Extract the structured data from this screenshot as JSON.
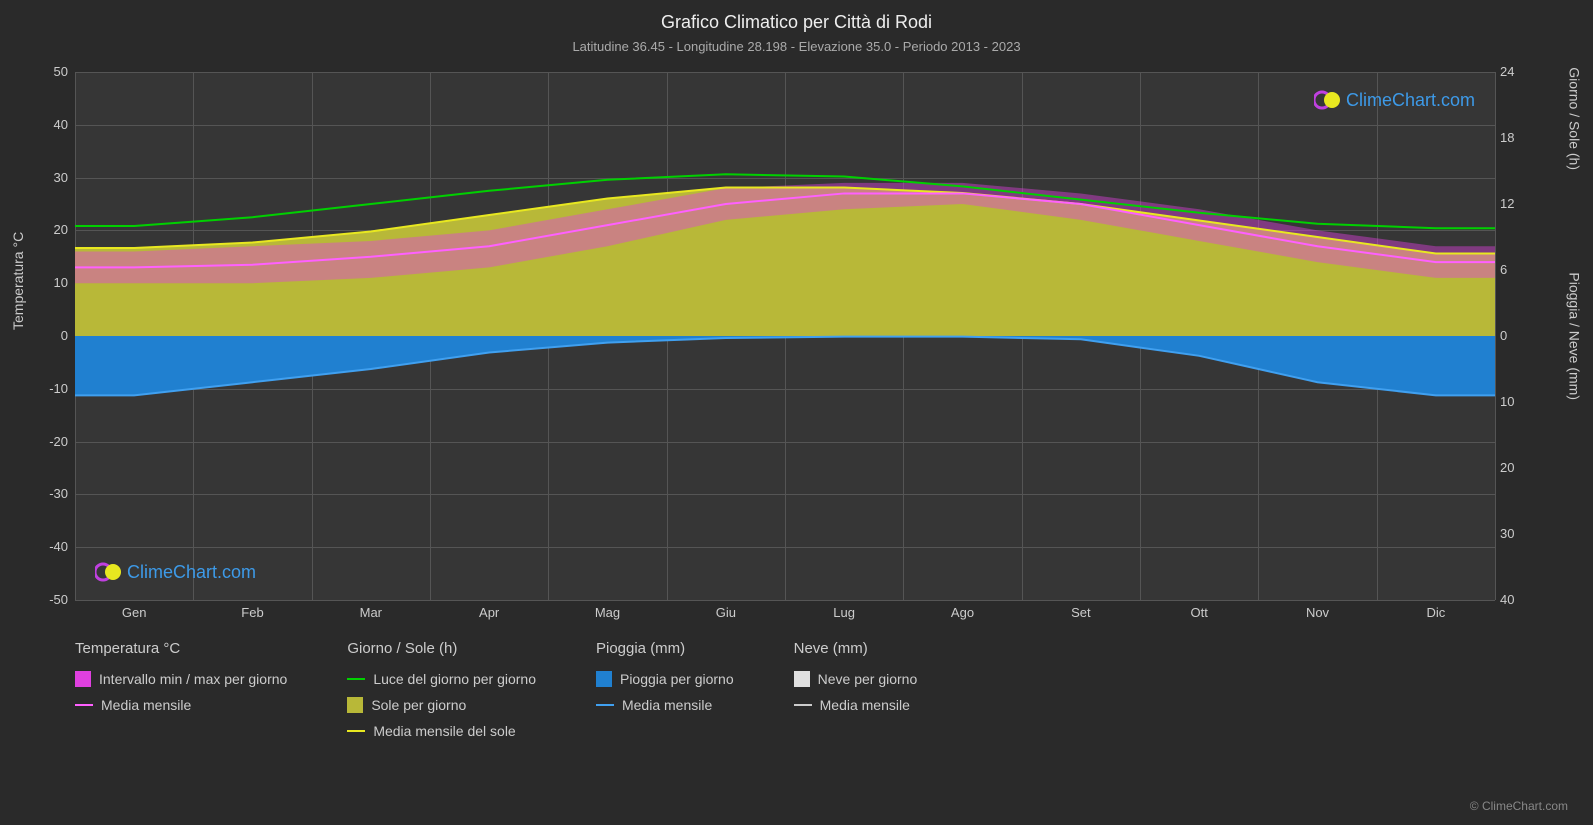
{
  "title": "Grafico Climatico per Città di Rodi",
  "subtitle": "Latitudine 36.45 - Longitudine 28.198 - Elevazione 35.0 - Periodo 2013 - 2023",
  "watermark_text": "ClimeChart.com",
  "copyright": "© ClimeChart.com",
  "background_color": "#2a2a2a",
  "plot_background": "#363636",
  "grid_color": "#555555",
  "text_color": "#cccccc",
  "title_fontsize": 18,
  "subtitle_fontsize": 13,
  "tick_fontsize": 13,
  "legend_fontsize": 14,
  "axis_left": {
    "label": "Temperatura °C",
    "min": -50,
    "max": 50,
    "ticks": [
      -50,
      -40,
      -30,
      -20,
      -10,
      0,
      10,
      20,
      30,
      40,
      50
    ]
  },
  "axis_right_top": {
    "label": "Giorno / Sole (h)",
    "min": 0,
    "max": 24,
    "ticks": [
      0,
      6,
      12,
      18,
      24
    ]
  },
  "axis_right_bottom": {
    "label": "Pioggia / Neve (mm)",
    "min": 0,
    "max": 40,
    "ticks": [
      0,
      10,
      20,
      30,
      40
    ]
  },
  "axis_x": {
    "labels": [
      "Gen",
      "Feb",
      "Mar",
      "Apr",
      "Mag",
      "Giu",
      "Lug",
      "Ago",
      "Set",
      "Ott",
      "Nov",
      "Dic"
    ]
  },
  "colors": {
    "temp_range": "#e040e0",
    "temp_mean": "#ff60ff",
    "daylight": "#00d000",
    "sun_fill": "#b8b838",
    "sun_line": "#e8e820",
    "rain_fill": "#2080d0",
    "rain_line": "#40a0f0",
    "snow_fill": "#e0e0e0",
    "snow_line": "#cccccc",
    "watermark": "#3d9ae8"
  },
  "series": {
    "temp_mean": [
      13,
      13.5,
      15,
      17,
      21,
      25,
      27,
      27,
      25,
      21,
      17,
      14
    ],
    "temp_min": [
      10,
      10,
      11,
      13,
      17,
      22,
      24,
      25,
      22,
      18,
      14,
      11
    ],
    "temp_max": [
      16,
      17,
      18,
      20,
      24,
      28,
      29,
      29,
      27,
      24,
      20,
      17
    ],
    "daylight_h": [
      10,
      10.8,
      12,
      13.2,
      14.2,
      14.7,
      14.5,
      13.6,
      12.4,
      11.2,
      10.2,
      9.8
    ],
    "sun_h": [
      8,
      8.5,
      9.5,
      11,
      12.5,
      13.5,
      13.5,
      13,
      12,
      10.5,
      9,
      7.5
    ],
    "rain_mm": [
      9,
      7,
      5,
      2.5,
      1,
      0.3,
      0.1,
      0.1,
      0.5,
      3,
      7,
      9
    ],
    "snow_mm": [
      0,
      0,
      0,
      0,
      0,
      0,
      0,
      0,
      0,
      0,
      0,
      0
    ]
  },
  "legend": {
    "groups": [
      {
        "header": "Temperatura °C",
        "items": [
          {
            "type": "square",
            "color_key": "temp_range",
            "label": "Intervallo min / max per giorno"
          },
          {
            "type": "line",
            "color_key": "temp_mean",
            "label": "Media mensile"
          }
        ]
      },
      {
        "header": "Giorno / Sole (h)",
        "items": [
          {
            "type": "line",
            "color_key": "daylight",
            "label": "Luce del giorno per giorno"
          },
          {
            "type": "square",
            "color_key": "sun_fill",
            "label": "Sole per giorno"
          },
          {
            "type": "line",
            "color_key": "sun_line",
            "label": "Media mensile del sole"
          }
        ]
      },
      {
        "header": "Pioggia (mm)",
        "items": [
          {
            "type": "square",
            "color_key": "rain_fill",
            "label": "Pioggia per giorno"
          },
          {
            "type": "line",
            "color_key": "rain_line",
            "label": "Media mensile"
          }
        ]
      },
      {
        "header": "Neve (mm)",
        "items": [
          {
            "type": "square",
            "color_key": "snow_fill",
            "label": "Neve per giorno"
          },
          {
            "type": "line",
            "color_key": "snow_line",
            "label": "Media mensile"
          }
        ]
      }
    ]
  }
}
